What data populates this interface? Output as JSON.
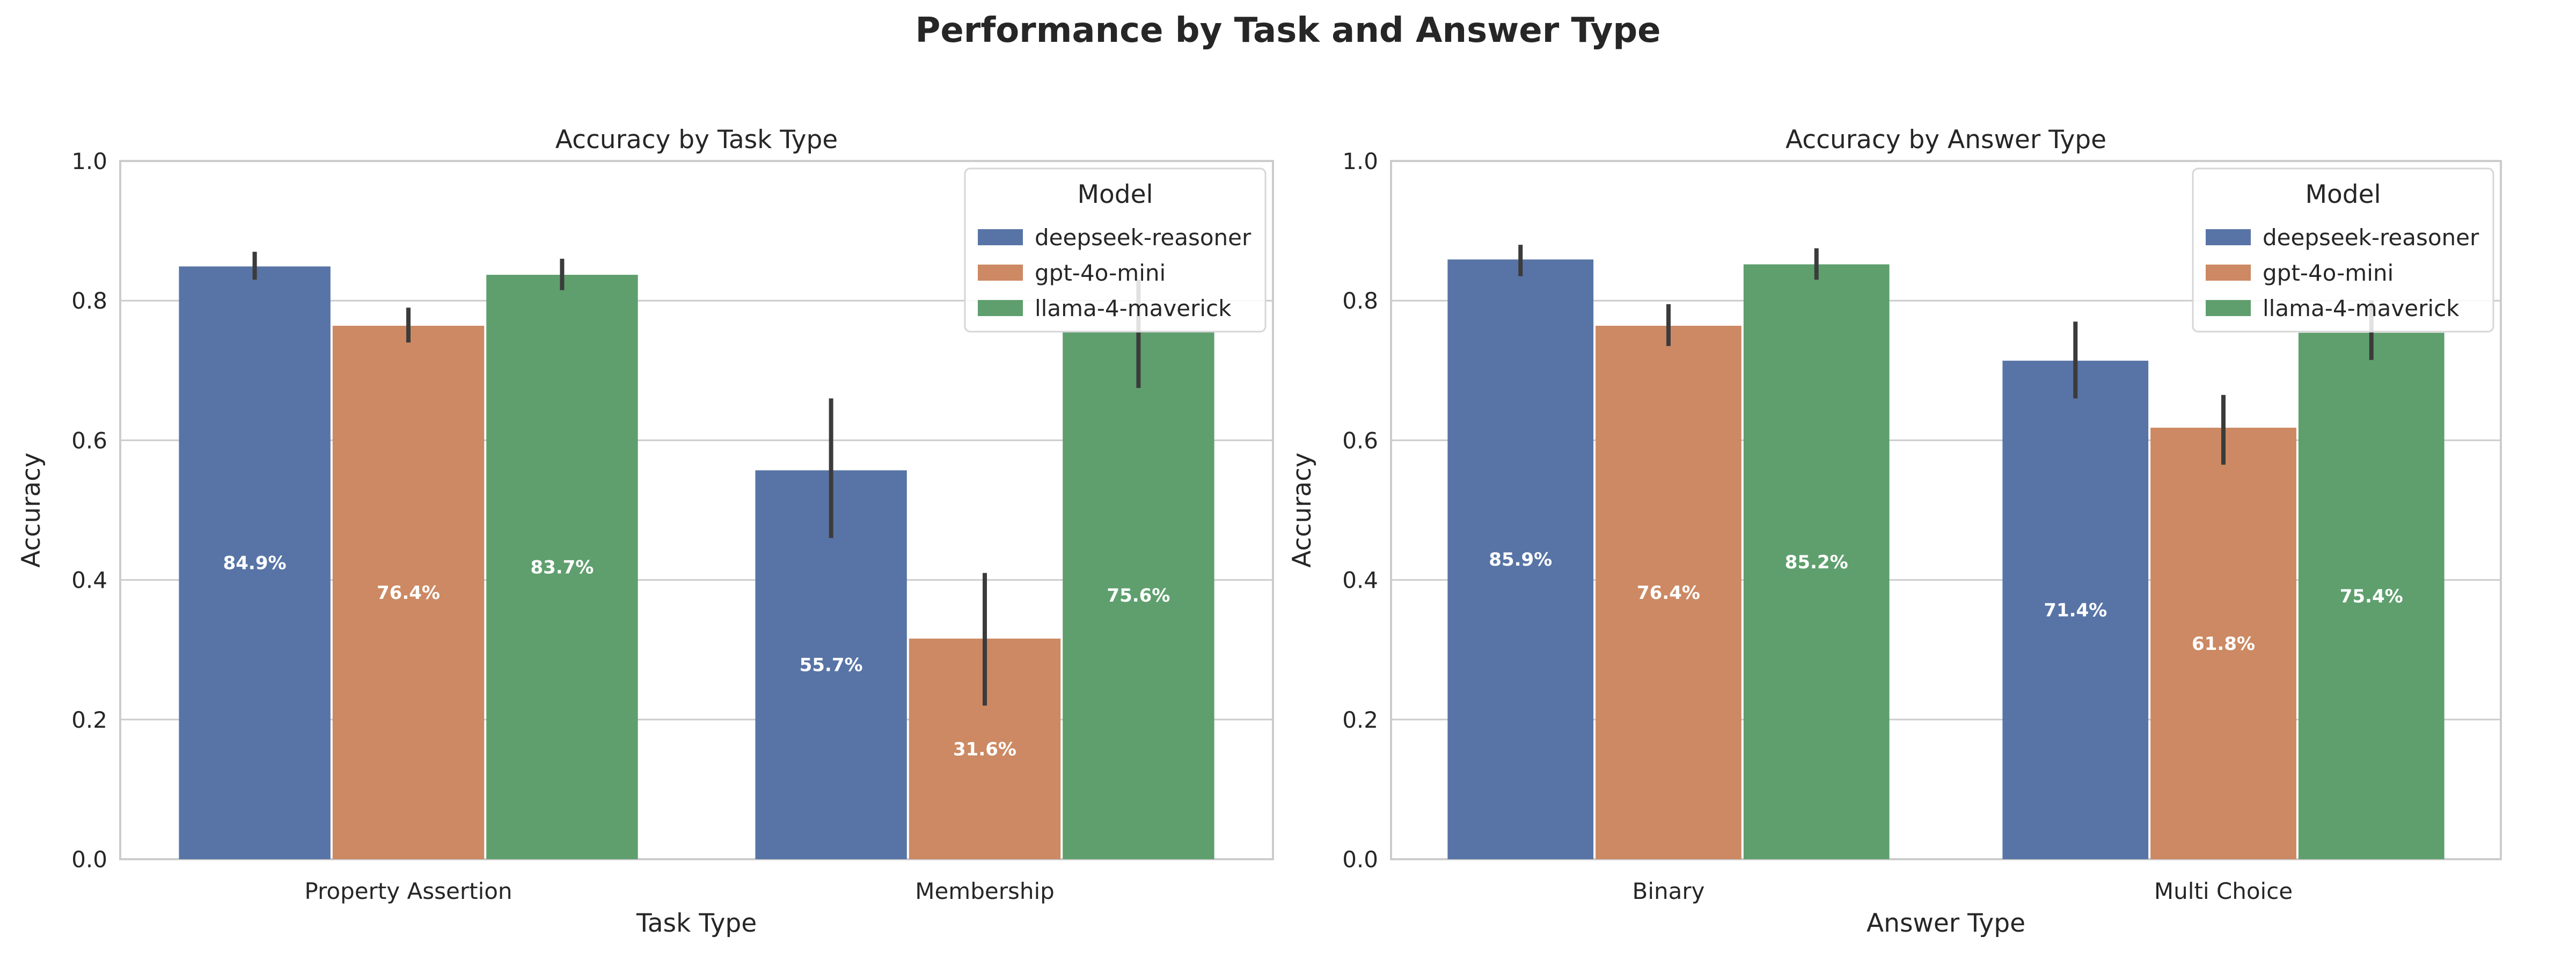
{
  "suptitle": "Performance by Task and Answer Type",
  "colors": {
    "deepseek-reasoner": "#5874a6",
    "gpt-4o-mini": "#cc8963",
    "llama-4-maverick": "#5f9f6e",
    "grid": "#cccccc",
    "errorbar": "#3b3b3b"
  },
  "chart_data": [
    {
      "type": "bar",
      "title": "Accuracy by Task Type",
      "xlabel": "Task Type",
      "ylabel": "Accuracy",
      "ylim": [
        0,
        1.0
      ],
      "yticks": [
        "0.0",
        "0.2",
        "0.4",
        "0.6",
        "0.8",
        "1.0"
      ],
      "grid": true,
      "legend": {
        "title": "Model",
        "placement": "top-right"
      },
      "categories": [
        "Property Assertion",
        "Membership"
      ],
      "series": [
        {
          "name": "deepseek-reasoner",
          "values": [
            0.849,
            0.557
          ],
          "errors": [
            [
              0.83,
              0.87
            ],
            [
              0.46,
              0.66
            ]
          ],
          "labels": [
            "84.9%",
            "55.7%"
          ]
        },
        {
          "name": "gpt-4o-mini",
          "values": [
            0.764,
            0.316
          ],
          "errors": [
            [
              0.74,
              0.79
            ],
            [
              0.22,
              0.41
            ]
          ],
          "labels": [
            "76.4%",
            "31.6%"
          ]
        },
        {
          "name": "llama-4-maverick",
          "values": [
            0.837,
            0.756
          ],
          "errors": [
            [
              0.815,
              0.86
            ],
            [
              0.675,
              0.83
            ]
          ],
          "labels": [
            "83.7%",
            "75.6%"
          ]
        }
      ]
    },
    {
      "type": "bar",
      "title": "Accuracy by Answer Type",
      "xlabel": "Answer Type",
      "ylabel": "Accuracy",
      "ylim": [
        0,
        1.0
      ],
      "yticks": [
        "0.0",
        "0.2",
        "0.4",
        "0.6",
        "0.8",
        "1.0"
      ],
      "grid": true,
      "legend": {
        "title": "Model",
        "placement": "top-right"
      },
      "categories": [
        "Binary",
        "Multi Choice"
      ],
      "series": [
        {
          "name": "deepseek-reasoner",
          "values": [
            0.859,
            0.714
          ],
          "errors": [
            [
              0.835,
              0.88
            ],
            [
              0.66,
              0.77
            ]
          ],
          "labels": [
            "85.9%",
            "71.4%"
          ]
        },
        {
          "name": "gpt-4o-mini",
          "values": [
            0.764,
            0.618
          ],
          "errors": [
            [
              0.735,
              0.795
            ],
            [
              0.565,
              0.665
            ]
          ],
          "labels": [
            "76.4%",
            "61.8%"
          ]
        },
        {
          "name": "llama-4-maverick",
          "values": [
            0.852,
            0.754
          ],
          "errors": [
            [
              0.83,
              0.875
            ],
            [
              0.715,
              0.8
            ]
          ],
          "labels": [
            "85.2%",
            "75.4%"
          ]
        }
      ]
    }
  ]
}
